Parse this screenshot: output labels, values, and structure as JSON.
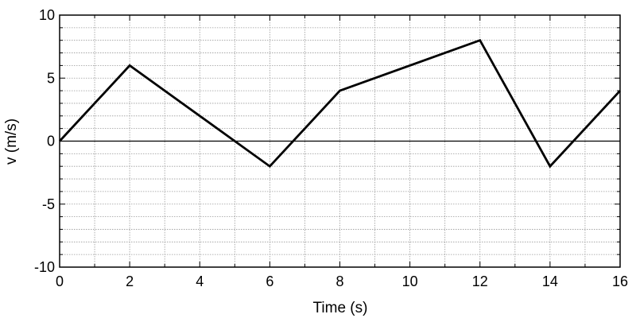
{
  "chart_data": {
    "type": "line",
    "title": "",
    "xlabel": "Time (s)",
    "ylabel": "v (m/s)",
    "xlim": [
      0,
      16
    ],
    "ylim": [
      -10,
      10
    ],
    "x_ticks": [
      0,
      2,
      4,
      6,
      8,
      10,
      12,
      14,
      16
    ],
    "y_ticks": [
      -10,
      -5,
      0,
      5,
      10
    ],
    "x_tick_labels": [
      "0",
      "2",
      "4",
      "6",
      "8",
      "10",
      "12",
      "14",
      "16"
    ],
    "y_tick_labels": [
      "-10",
      "-5",
      "0",
      "5",
      "10"
    ],
    "x_minor_step": 1,
    "y_minor_step": 1,
    "grid": true,
    "zero_line": true,
    "series": [
      {
        "x": [
          0,
          2,
          6,
          8,
          12,
          14,
          16
        ],
        "y": [
          0,
          6,
          -2,
          4,
          8,
          -2,
          4
        ],
        "color": "#000000"
      }
    ]
  }
}
